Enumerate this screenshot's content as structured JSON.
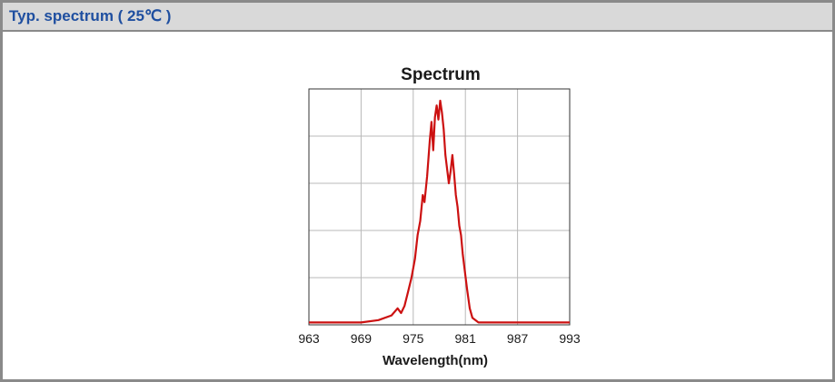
{
  "section": {
    "title": "Typ. spectrum ( 25℃ )"
  },
  "colors": {
    "header_text": "#1f4fa0",
    "header_bg": "#d9d9d9",
    "line": "#cc1111",
    "grid": "#b8b8b8"
  },
  "chart_data": {
    "type": "line",
    "title": "Spectrum",
    "xlabel": "Wavelength(nm)",
    "ylabel": "",
    "xlim": [
      963,
      993
    ],
    "ylim": [
      0,
      1
    ],
    "xticks": [
      963,
      969,
      975,
      981,
      987,
      993
    ],
    "grid": true,
    "series": [
      {
        "x": [
          963,
          966,
          969,
          971,
          972.5,
          973.2,
          973.6,
          974.0,
          974.4,
          974.8,
          975.2,
          975.5,
          975.8,
          976.1,
          976.3,
          976.6,
          976.9,
          977.1,
          977.3,
          977.5,
          977.7,
          977.9,
          978.1,
          978.3,
          978.5,
          978.7,
          978.9,
          979.1,
          979.3,
          979.5,
          979.7,
          979.9,
          980.1,
          980.3,
          980.5,
          980.7,
          980.9,
          981.2,
          981.5,
          981.8,
          982.5,
          984,
          987,
          990,
          993
        ],
        "y": [
          0.01,
          0.01,
          0.01,
          0.02,
          0.04,
          0.07,
          0.05,
          0.08,
          0.14,
          0.2,
          0.28,
          0.38,
          0.44,
          0.55,
          0.52,
          0.63,
          0.78,
          0.86,
          0.74,
          0.88,
          0.93,
          0.87,
          0.95,
          0.9,
          0.83,
          0.72,
          0.66,
          0.6,
          0.65,
          0.72,
          0.64,
          0.55,
          0.5,
          0.42,
          0.38,
          0.3,
          0.24,
          0.15,
          0.07,
          0.03,
          0.01,
          0.01,
          0.01,
          0.01,
          0.01
        ]
      }
    ]
  }
}
